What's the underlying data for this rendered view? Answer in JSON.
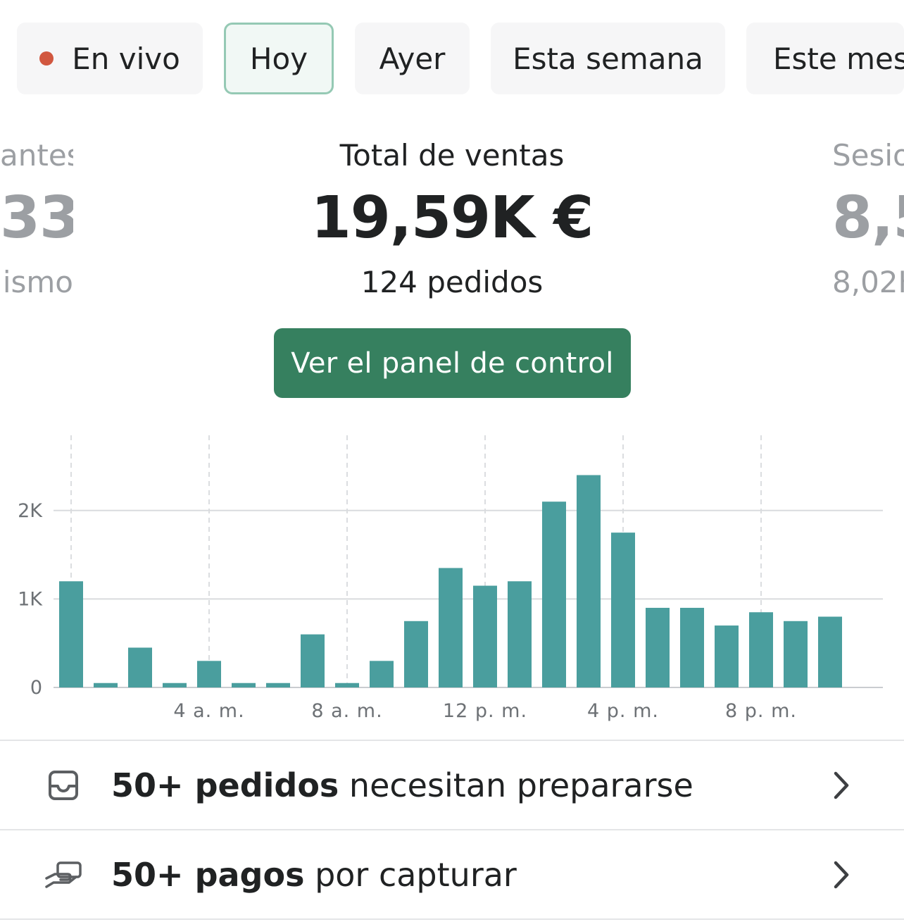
{
  "filters": [
    {
      "label": "En vivo",
      "live": true
    },
    {
      "label": "Hoy",
      "active": true
    },
    {
      "label": "Ayer"
    },
    {
      "label": "Esta semana"
    },
    {
      "label": "Este mes"
    }
  ],
  "metrics": {
    "left": {
      "label": "antes",
      "value": "33",
      "sub": "ismo"
    },
    "center": {
      "label": "Total de ventas",
      "value": "19,59K €",
      "sub": "124 pedidos"
    },
    "right": {
      "label": "Sesio",
      "value": "8,5",
      "sub": "8,02K"
    }
  },
  "cta_label": "Ver el panel de control",
  "colors": {
    "accent": "#36805f",
    "bar": "#4a9e9e",
    "live_dot": "#d1573f"
  },
  "chart_data": {
    "type": "bar",
    "y_ticks": [
      "0",
      "1K",
      "2K"
    ],
    "y_tick_values": [
      0,
      1000,
      2000
    ],
    "ylim": [
      0,
      2850
    ],
    "x_ticks": [
      "4 a. m.",
      "8 a. m.",
      "12 p. m.",
      "4 p. m.",
      "8 p. m."
    ],
    "x_tick_hours": [
      4,
      8,
      12,
      16,
      20
    ],
    "hours": [
      0,
      1,
      2,
      3,
      4,
      5,
      6,
      7,
      8,
      9,
      10,
      11,
      12,
      13,
      14,
      15,
      16,
      17,
      18,
      19,
      20,
      21,
      22,
      23
    ],
    "values": [
      1200,
      50,
      450,
      50,
      300,
      50,
      50,
      600,
      50,
      300,
      750,
      1350,
      1150,
      1200,
      2100,
      2400,
      1750,
      900,
      900,
      700,
      850,
      750,
      800,
      0
    ],
    "grid": true
  },
  "rows": [
    {
      "icon": "inbox-icon",
      "bold": "50+ pedidos",
      "text": " necesitan prepararse"
    },
    {
      "icon": "payment-hand-icon",
      "bold": "50+ pagos",
      "text": " por capturar"
    }
  ]
}
